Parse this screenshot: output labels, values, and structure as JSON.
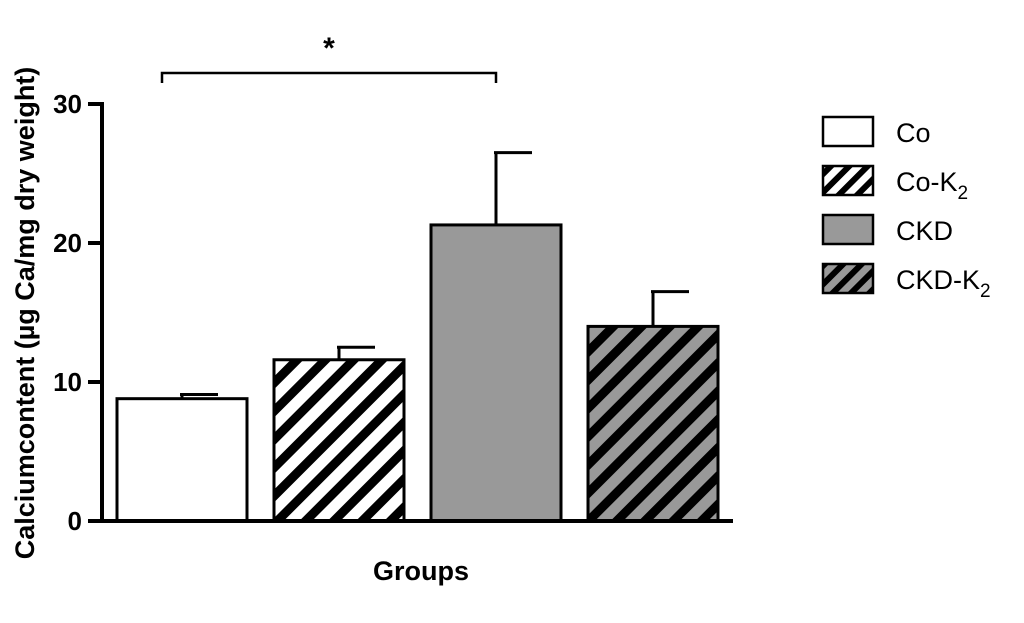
{
  "chart_data": {
    "type": "bar",
    "xlabel": "Groups",
    "ylabel": "Calciumcontent (µg Ca/mg dry weight)",
    "ylim": [
      0,
      30
    ],
    "yticks": [
      "0",
      "10",
      "20",
      "30"
    ],
    "grid": false,
    "legend_position": "right",
    "categories": [
      "Co",
      "Co-K2",
      "CKD",
      "CKD-K2"
    ],
    "legend": [
      {
        "base": "Co",
        "sub": "",
        "fill": "white"
      },
      {
        "base": "Co-K",
        "sub": "2",
        "fill": "white-hatched"
      },
      {
        "base": "CKD",
        "sub": "",
        "fill": "gray"
      },
      {
        "base": "CKD-K",
        "sub": "2",
        "fill": "gray-hatched"
      }
    ],
    "values": [
      8.8,
      11.6,
      21.3,
      14.0
    ],
    "errors": [
      0.3,
      0.9,
      5.2,
      2.5
    ],
    "colors": {
      "gray": "#999999",
      "line": "#000000",
      "white": "#ffffff"
    },
    "annotations": [
      {
        "text": "*",
        "from": "Co",
        "to": "CKD"
      }
    ]
  }
}
